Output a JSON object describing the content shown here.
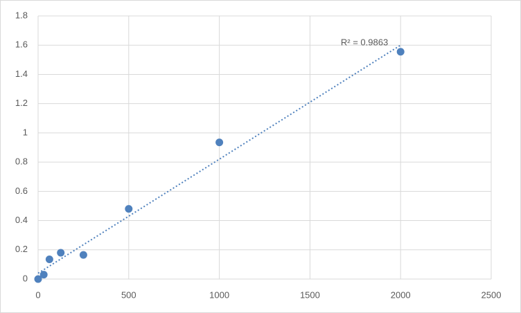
{
  "chart_data": {
    "type": "scatter",
    "x": [
      0,
      31.25,
      62.5,
      125,
      250,
      500,
      1000,
      2000
    ],
    "series": [
      {
        "color": "#4f81bd",
        "values": [
          0,
          0.03,
          0.135,
          0.18,
          0.165,
          0.48,
          0.935,
          1.555
        ]
      }
    ],
    "trendline": {
      "x": [
        0,
        2000
      ],
      "values": [
        0.04,
        1.6
      ],
      "color": "#4f81bd",
      "label": "R² = 0.9863"
    },
    "xlim": [
      0,
      2500
    ],
    "xticks": [
      0,
      500,
      1000,
      1500,
      2000,
      2500
    ],
    "ylim": [
      0,
      1.8
    ],
    "yticks": [
      0,
      0.2,
      0.4,
      0.6,
      0.8,
      1,
      1.2,
      1.4,
      1.6,
      1.8
    ],
    "grid": true
  }
}
